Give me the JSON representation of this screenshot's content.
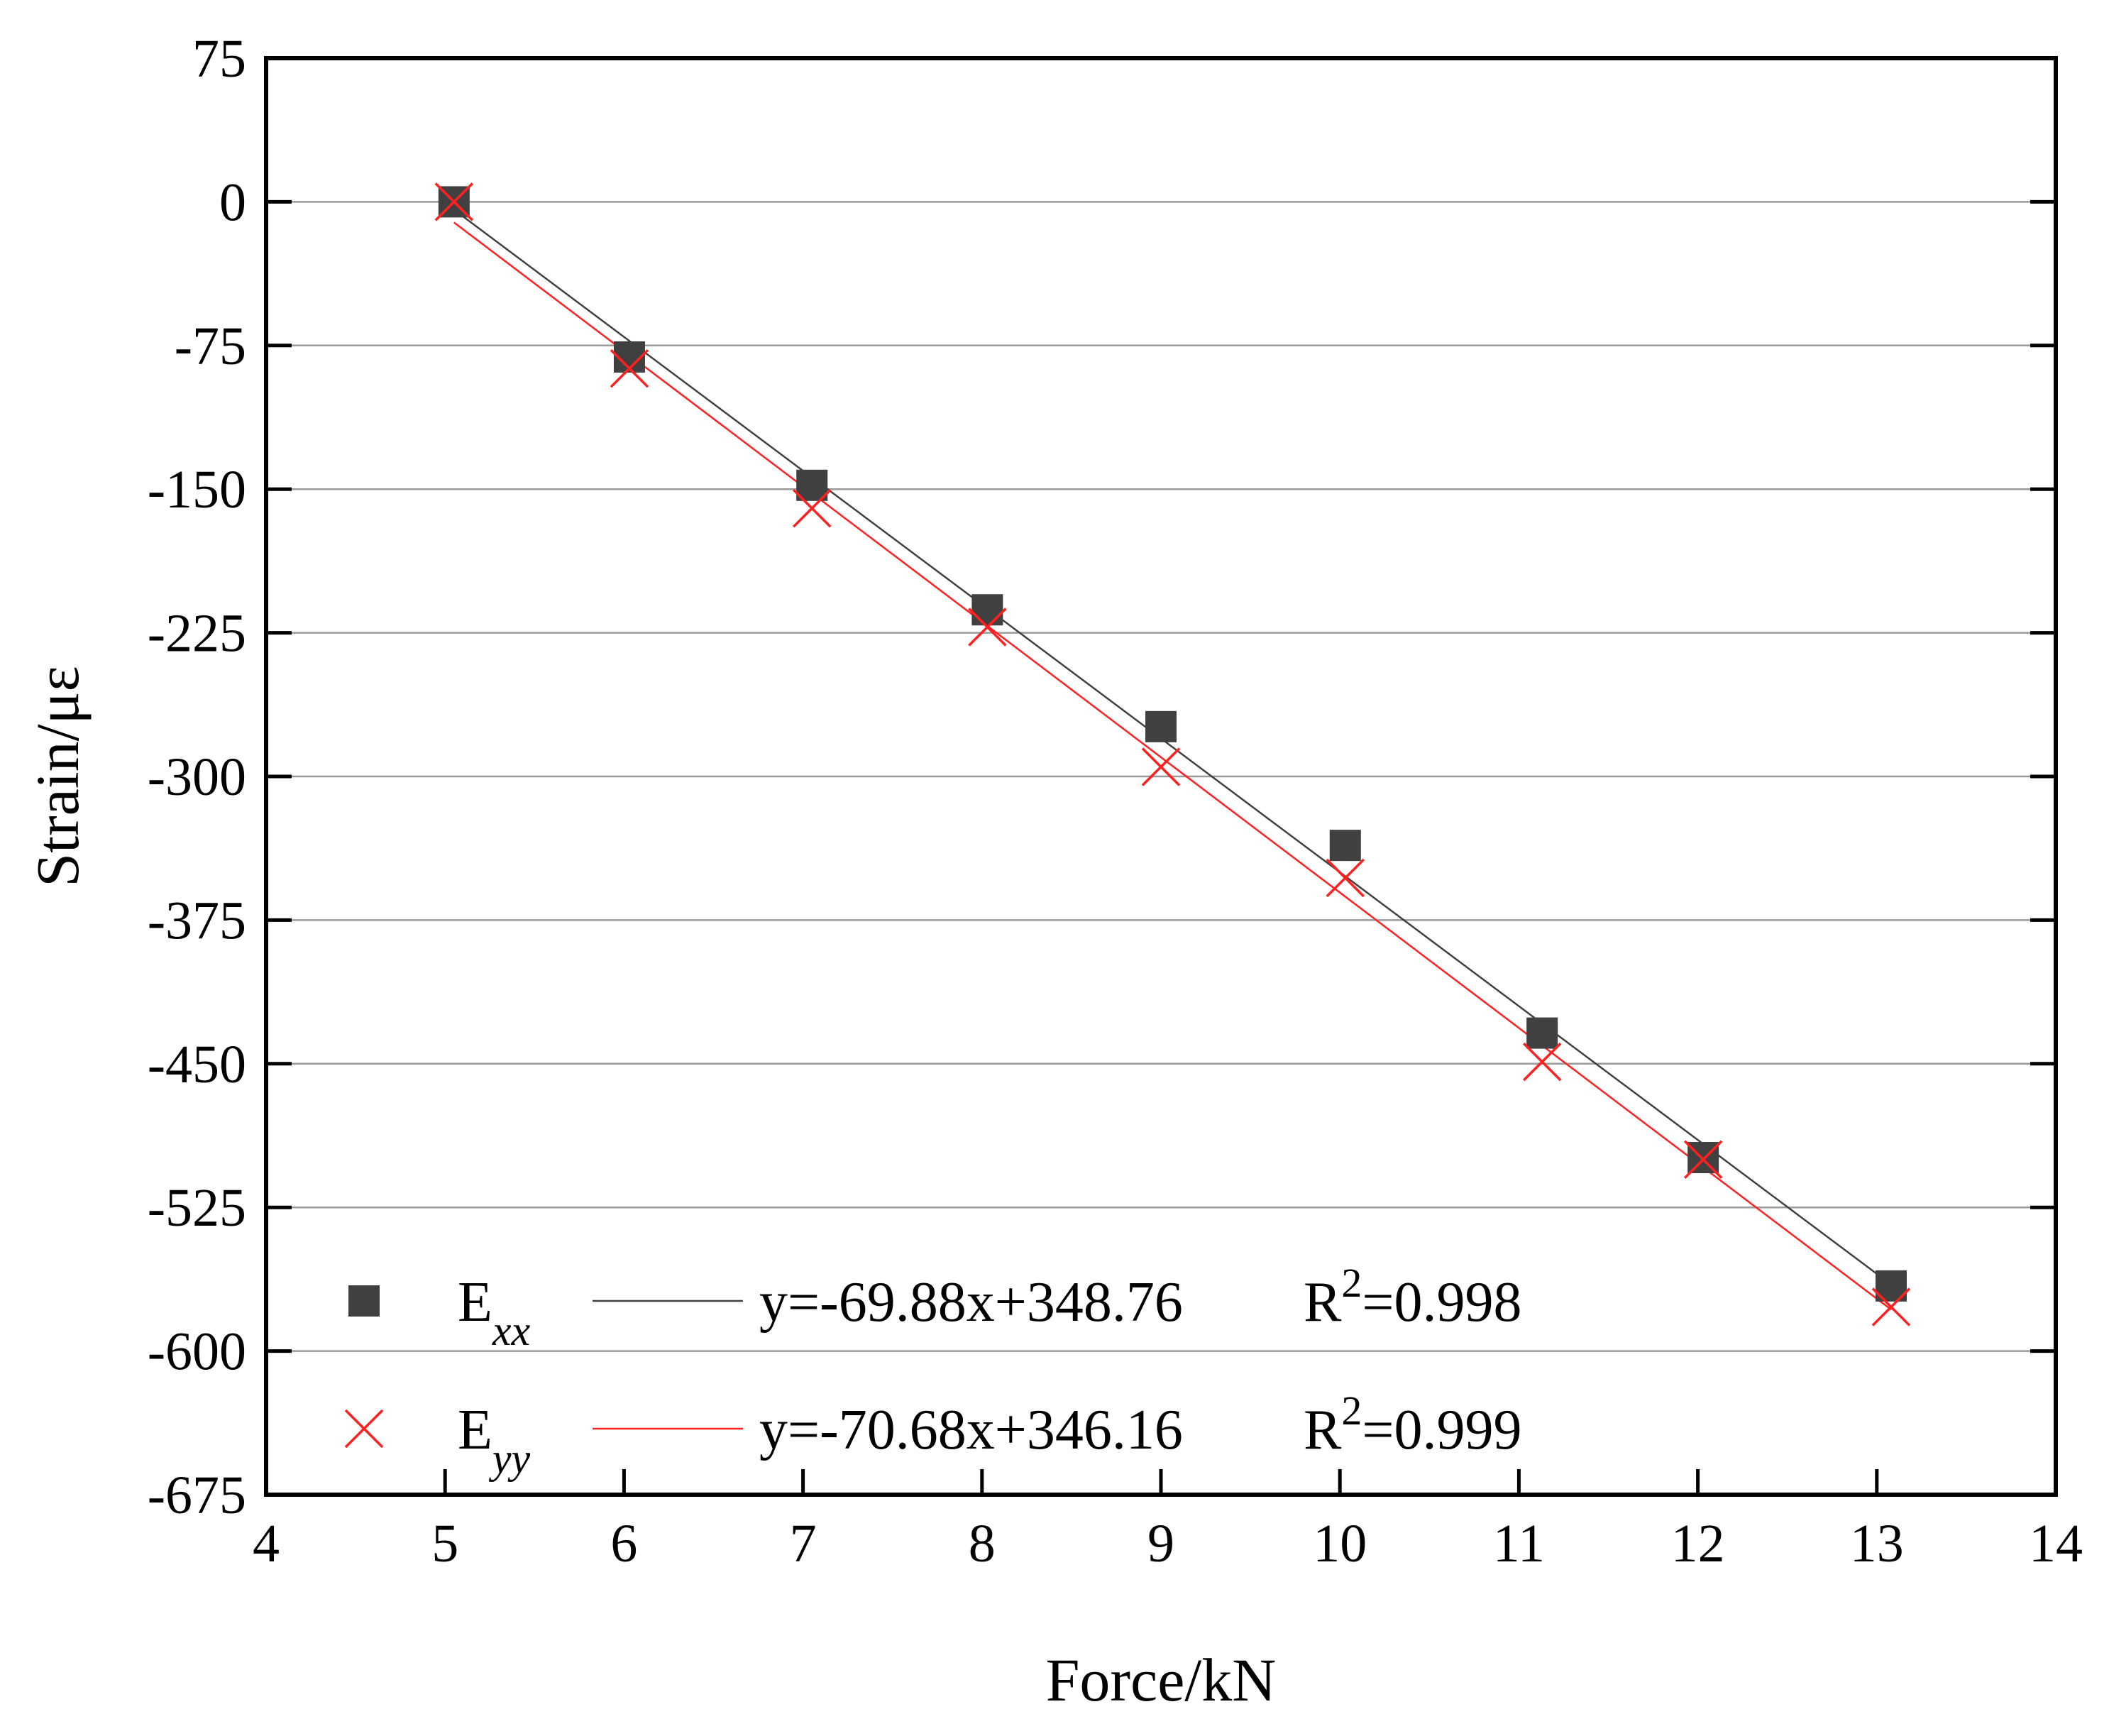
{
  "chart_data": {
    "type": "scatter",
    "xlabel": "Force/kN",
    "ylabel": "Strain/με",
    "xlim": [
      4,
      14
    ],
    "ylim": [
      -675,
      75
    ],
    "xticks": [
      "4",
      "5",
      "6",
      "7",
      "8",
      "9",
      "10",
      "11",
      "12",
      "13",
      "14"
    ],
    "yticks": [
      "75",
      "0",
      "-75",
      "-150",
      "-225",
      "-300",
      "-375",
      "-450",
      "-525",
      "-600",
      "-675"
    ],
    "grid": true,
    "legend_position": "bottom-left",
    "series": [
      {
        "name": "E",
        "subscript": "xx",
        "marker": "square",
        "color": "#404040",
        "x": [
          5.05,
          6.03,
          7.05,
          8.03,
          9.0,
          10.03,
          11.13,
          12.03,
          13.08
        ],
        "y": [
          0,
          -81,
          -148,
          -213,
          -274,
          -336,
          -434,
          -499,
          -566
        ],
        "fit": {
          "slope": -69.88,
          "intercept": 348.76,
          "color": "#404040"
        },
        "fit_label": "y=-69.88x+348.76",
        "r2_label": "R",
        "r2_sup": "2",
        "r2_value": "=0.998"
      },
      {
        "name": "E",
        "subscript": "yy",
        "marker": "cross",
        "color": "#ff2020",
        "x": [
          5.05,
          6.03,
          7.05,
          8.03,
          9.0,
          10.03,
          11.13,
          12.03,
          13.08
        ],
        "y": [
          0,
          -87,
          -160,
          -222,
          -295,
          -353,
          -449,
          -500,
          -577
        ],
        "fit": {
          "slope": -70.68,
          "intercept": 346.16,
          "color": "#ff2020"
        },
        "fit_label": "y=-70.68x+346.16",
        "r2_label": "R",
        "r2_sup": "2",
        "r2_value": "=0.999"
      }
    ]
  }
}
